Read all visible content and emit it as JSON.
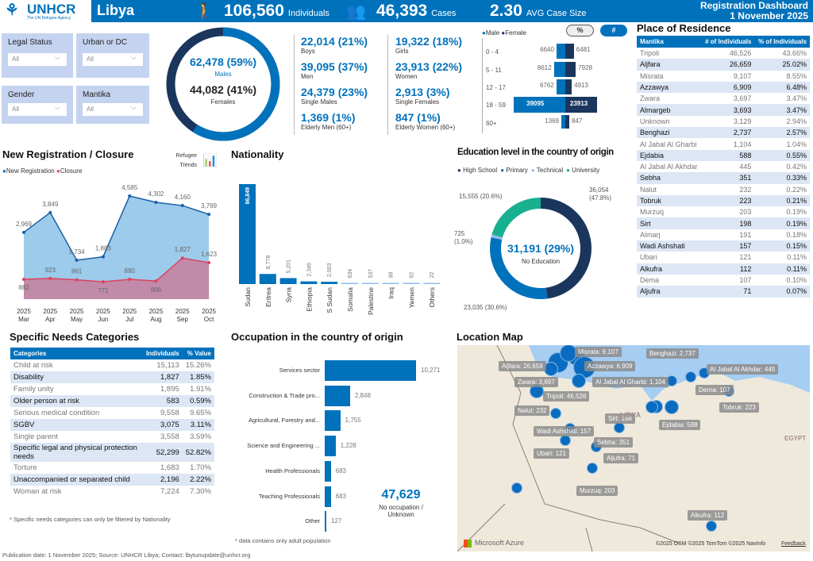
{
  "header": {
    "org": "UNHCR",
    "tagline": "The UN Refugee Agency",
    "country": "Libya",
    "individuals": "106,560",
    "individuals_label": "Individuals",
    "cases": "46,393",
    "cases_label": "Cases",
    "avg": "2.30",
    "avg_label": "AVG Case Size",
    "dash_title": "Registration Dashboard",
    "date": "1 November 2025"
  },
  "filters": [
    {
      "label": "Legal Status",
      "value": "All"
    },
    {
      "label": "Urban or DC",
      "value": "All"
    },
    {
      "label": "Gender",
      "value": "All"
    },
    {
      "label": "Mantika",
      "value": "All"
    }
  ],
  "gender_donut": {
    "males": "62,478 (59%)",
    "males_label": "Males",
    "females": "44,082 (41%)",
    "females_label": "Females",
    "male_pct": 59,
    "colors": {
      "male": "#0072BC",
      "female": "#1b365d"
    }
  },
  "stats": [
    {
      "v": "22,014 (21%)",
      "l": "Boys"
    },
    {
      "v": "19,322 (18%)",
      "l": "Girls"
    },
    {
      "v": "39,095 (37%)",
      "l": "Men"
    },
    {
      "v": "23,913 (22%)",
      "l": "Women"
    },
    {
      "v": "24,379 (23%)",
      "l": "Single Males"
    },
    {
      "v": "2,913 (3%)",
      "l": "Single Females"
    },
    {
      "v": "1,369 (1%)",
      "l": "Elderly Men (60+)"
    },
    {
      "v": "847 (1%)",
      "l": "Elderly Women (60+)"
    }
  ],
  "pyramid": {
    "legend_male": "Male",
    "legend_female": "Female",
    "btn_pct": "%",
    "btn_num": "#",
    "rows": [
      {
        "age": "0 - 4",
        "m": 6640,
        "f": 6481
      },
      {
        "age": "5 - 11",
        "m": 8612,
        "f": 7928
      },
      {
        "age": "12 - 17",
        "m": 6762,
        "f": 4913
      },
      {
        "age": "18 - 59",
        "m": 39095,
        "f": 23913
      },
      {
        "age": "60+",
        "m": 1369,
        "f": 847
      }
    ]
  },
  "residence": {
    "title": "Place of Residence",
    "cols": [
      "Mantika",
      "# of Individuals",
      "% of Individuals"
    ],
    "rows": [
      [
        "Tripoli",
        "46,526",
        "43.66%"
      ],
      [
        "Aljfara",
        "26,659",
        "25.02%"
      ],
      [
        "Misrata",
        "9,107",
        "8.55%"
      ],
      [
        "Azzawya",
        "6,909",
        "6.48%"
      ],
      [
        "Zwara",
        "3,697",
        "3.47%"
      ],
      [
        "Almargeb",
        "3,693",
        "3.47%"
      ],
      [
        "Unknown",
        "3,129",
        "2.94%"
      ],
      [
        "Benghazi",
        "2,737",
        "2.57%"
      ],
      [
        "Al Jabal Al Gharbi",
        "1,104",
        "1.04%"
      ],
      [
        "Ejdabia",
        "588",
        "0.55%"
      ],
      [
        "Al Jabal Al Akhdar",
        "445",
        "0.42%"
      ],
      [
        "Sebha",
        "351",
        "0.33%"
      ],
      [
        "Nalut",
        "232",
        "0.22%"
      ],
      [
        "Tobruk",
        "223",
        "0.21%"
      ],
      [
        "Murzuq",
        "203",
        "0.19%"
      ],
      [
        "Sirt",
        "198",
        "0.19%"
      ],
      [
        "Almarj",
        "191",
        "0.18%"
      ],
      [
        "Wadi Ashshati",
        "157",
        "0.15%"
      ],
      [
        "Ubari",
        "121",
        "0.11%"
      ],
      [
        "Alkufra",
        "112",
        "0.11%"
      ],
      [
        "Dema",
        "107",
        "0.10%"
      ],
      [
        "Aljufra",
        "71",
        "0.07%"
      ]
    ]
  },
  "chart_data": [
    {
      "type": "area",
      "title": "New Registration / Closure",
      "categories": [
        "2025 Mar",
        "2025 Apr",
        "2025 May",
        "2025 Jun",
        "2025 Jul",
        "2025 Aug",
        "2025 Sep",
        "2025 Oct"
      ],
      "series": [
        {
          "name": "New Registration",
          "color": "#0072BC",
          "values": [
            2969,
            3849,
            1734,
            1883,
            4585,
            4302,
            4160,
            3769
          ]
        },
        {
          "name": "Closure",
          "color": "#e0425e",
          "values": [
            882,
            923,
            861,
            771,
            880,
            806,
            1827,
            1623
          ]
        }
      ],
      "ylim": [
        0,
        4700
      ]
    },
    {
      "type": "bar",
      "title": "Nationality",
      "categories": [
        "Sudan",
        "Eritrea",
        "Syria",
        "Ethiopia",
        "S Sudan",
        "Somalia",
        "Palestine",
        "Iraq",
        "Yemen",
        "Others"
      ],
      "values": [
        86849,
        8778,
        5201,
        2346,
        2003,
        634,
        537,
        98,
        92,
        22
      ]
    },
    {
      "type": "pie",
      "title": "Education level in the country of origin",
      "categories": [
        "High School",
        "Primary",
        "Technical",
        "University"
      ],
      "values": [
        36054,
        23035,
        725,
        15555
      ],
      "labels": [
        "36,054 (47.8%)",
        "23,035 (30.6%)",
        "725 (1.0%)",
        "15,555 (20.6%)"
      ],
      "colors": [
        "#1b365d",
        "#0072BC",
        "#8ebbeb",
        "#18b08f"
      ],
      "center_value": "31,191 (29%)",
      "center_label": "No Education"
    },
    {
      "type": "bar",
      "orientation": "horizontal",
      "title": "Occupation in the country of origin",
      "categories": [
        "Services sector",
        "Construction & Trade pro...",
        "Agricultural, Forestry and...",
        "Science and Engineering ...",
        "Health Professionals",
        "Teaching Professionals",
        "Other"
      ],
      "values": [
        10271,
        2848,
        1755,
        1228,
        683,
        683,
        127
      ],
      "note": "* data contains only adult population",
      "side_value": "47,629",
      "side_label": "No occupation / Unknown"
    }
  ],
  "trends_link": "Refugee Trends",
  "needs": {
    "title": "Specific Needs Categories",
    "cols": [
      "Categories",
      "Individuals",
      "% Value"
    ],
    "rows": [
      [
        "Child at risk",
        "15,113",
        "15.26%"
      ],
      [
        "Disability",
        "1,827",
        "1.85%"
      ],
      [
        "Family unity",
        "1,895",
        "1.91%"
      ],
      [
        "Older person at risk",
        "583",
        "0.59%"
      ],
      [
        "Serious medical condition",
        "9,558",
        "9.65%"
      ],
      [
        "SGBV",
        "3,075",
        "3.11%"
      ],
      [
        "Single parent",
        "3,558",
        "3.59%"
      ],
      [
        "Specific legal and physical protection needs",
        "52,299",
        "52.82%"
      ],
      [
        "Torture",
        "1,683",
        "1.70%"
      ],
      [
        "Unaccompanied or separated child",
        "2,196",
        "2.22%"
      ],
      [
        "Woman at risk",
        "7,224",
        "7.30%"
      ]
    ],
    "note": "* Specific needs categories can only be filtered by Nationality"
  },
  "map": {
    "title": "Location Map",
    "country": "LIBYA",
    "neighbor": "EGYPT",
    "brand": "Microsoft Azure",
    "credits": "©2025 OSM  ©2025 TomTom  ©2025 NavInfo",
    "feedback": "Feedback",
    "labels": [
      "Misrata: 9,107",
      "Aljfara: 26,659",
      "Azzawya: 6,909",
      "Zwara: 3,697",
      "Al Jabal Al Gharbi: 1,104",
      "Tripoli: 46,526",
      "Nalut: 232",
      "Benghazi: 2,737",
      "Al Jabal Al Akhdar: 445",
      "Derna: 107",
      "Tobruk: 223",
      "Sirt: 198",
      "Ejdabia: 588",
      "Wadi Ashshati: 157",
      "Sebha: 351",
      "Ubari: 121",
      "Aljufra: 71",
      "Murzuq: 203",
      "Alkufra: 112"
    ]
  },
  "footer": "Publication date: 1 November 2025; Source: UNHCR Libya; Contact: lbytunupdate@unhcr.org"
}
